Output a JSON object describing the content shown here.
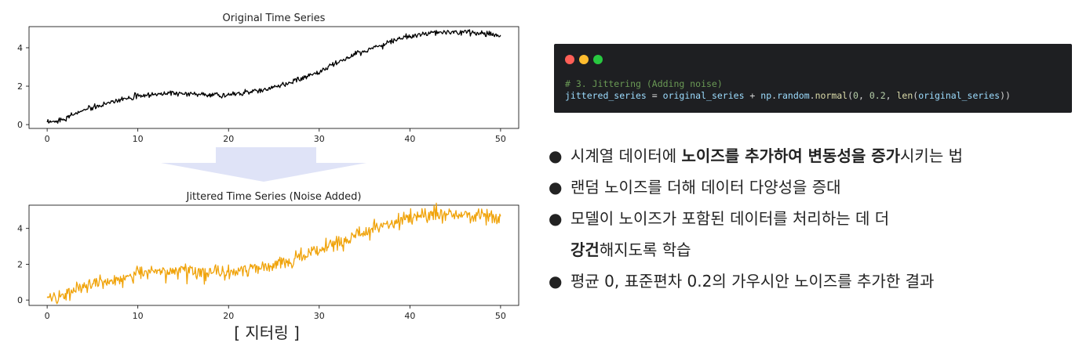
{
  "chart_data": [
    {
      "type": "line",
      "title": "Original Time Series",
      "xlabel": "",
      "ylabel": "",
      "xlim": [
        -2,
        52
      ],
      "ylim": [
        -0.2,
        5.1
      ],
      "xticks": [
        0,
        10,
        20,
        30,
        40,
        50
      ],
      "yticks": [
        0,
        2,
        4
      ],
      "grid": false,
      "series": [
        {
          "color": "#000000",
          "x": [
            0,
            2,
            4,
            6,
            8,
            10,
            12,
            14,
            16,
            18,
            20,
            22,
            24,
            26,
            28,
            30,
            32,
            34,
            36,
            38,
            40,
            42,
            44,
            46,
            48,
            50
          ],
          "y": [
            0.05,
            0.35,
            0.75,
            1.0,
            1.3,
            1.5,
            1.6,
            1.62,
            1.6,
            1.55,
            1.55,
            1.65,
            1.8,
            2.05,
            2.4,
            2.75,
            3.2,
            3.65,
            4.0,
            4.35,
            4.6,
            4.75,
            4.8,
            4.8,
            4.75,
            4.65
          ]
        }
      ]
    },
    {
      "type": "line",
      "title": "Jittered Time Series (Noise Added)",
      "xlabel": "",
      "ylabel": "",
      "xlim": [
        -2,
        52
      ],
      "ylim": [
        -0.3,
        5.3
      ],
      "xticks": [
        0,
        10,
        20,
        30,
        40,
        50
      ],
      "yticks": [
        0,
        2,
        4
      ],
      "grid": false,
      "series": [
        {
          "color": "#f0a30a",
          "x": [
            0,
            2,
            4,
            6,
            8,
            10,
            12,
            14,
            16,
            18,
            20,
            22,
            24,
            26,
            28,
            30,
            32,
            34,
            36,
            38,
            40,
            42,
            44,
            46,
            48,
            50
          ],
          "y": [
            0.05,
            0.35,
            0.75,
            1.0,
            1.3,
            1.5,
            1.6,
            1.62,
            1.6,
            1.55,
            1.55,
            1.65,
            1.8,
            2.05,
            2.4,
            2.75,
            3.2,
            3.65,
            4.0,
            4.35,
            4.6,
            4.75,
            4.8,
            4.8,
            4.75,
            4.65
          ],
          "noise_std": 0.2
        }
      ]
    }
  ],
  "caption": "[ 지터링 ]",
  "code": {
    "dots": [
      "#ff5f57",
      "#febc2e",
      "#28c840"
    ],
    "comment": "# 3. Jittering (Adding noise)",
    "line": {
      "var": "jittered_series",
      "eq": " = ",
      "arg1": "original_series",
      "plus": " + ",
      "mod": "np",
      "dot1": ".",
      "attr": "random",
      "dot2": ".",
      "fn": "normal",
      "open": "(",
      "n0": "0",
      "sep1": ", ",
      "n1": "0.2",
      "sep2": ", ",
      "fn2": "len",
      "open2": "(",
      "arg2": "original_series",
      "close": "))"
    }
  },
  "bullets": {
    "b1": {
      "pre": "시계열 데이터에 ",
      "bold1": "노이즈를 추가하여 변동성을 증가",
      "post": "시키는 법"
    },
    "b2": {
      "text": "랜덤 노이즈를 더해 데이터 다양성을 증대"
    },
    "b3": {
      "line1": "모델이 노이즈가 포함된 데이터를 처리하는 데 더",
      "bold": "강건",
      "post": "해지도록 학습"
    },
    "b4": {
      "text": "평균 0, 표준편차 0.2의 가우시안 노이즈를 추가한 결과"
    },
    "marker": "●"
  }
}
